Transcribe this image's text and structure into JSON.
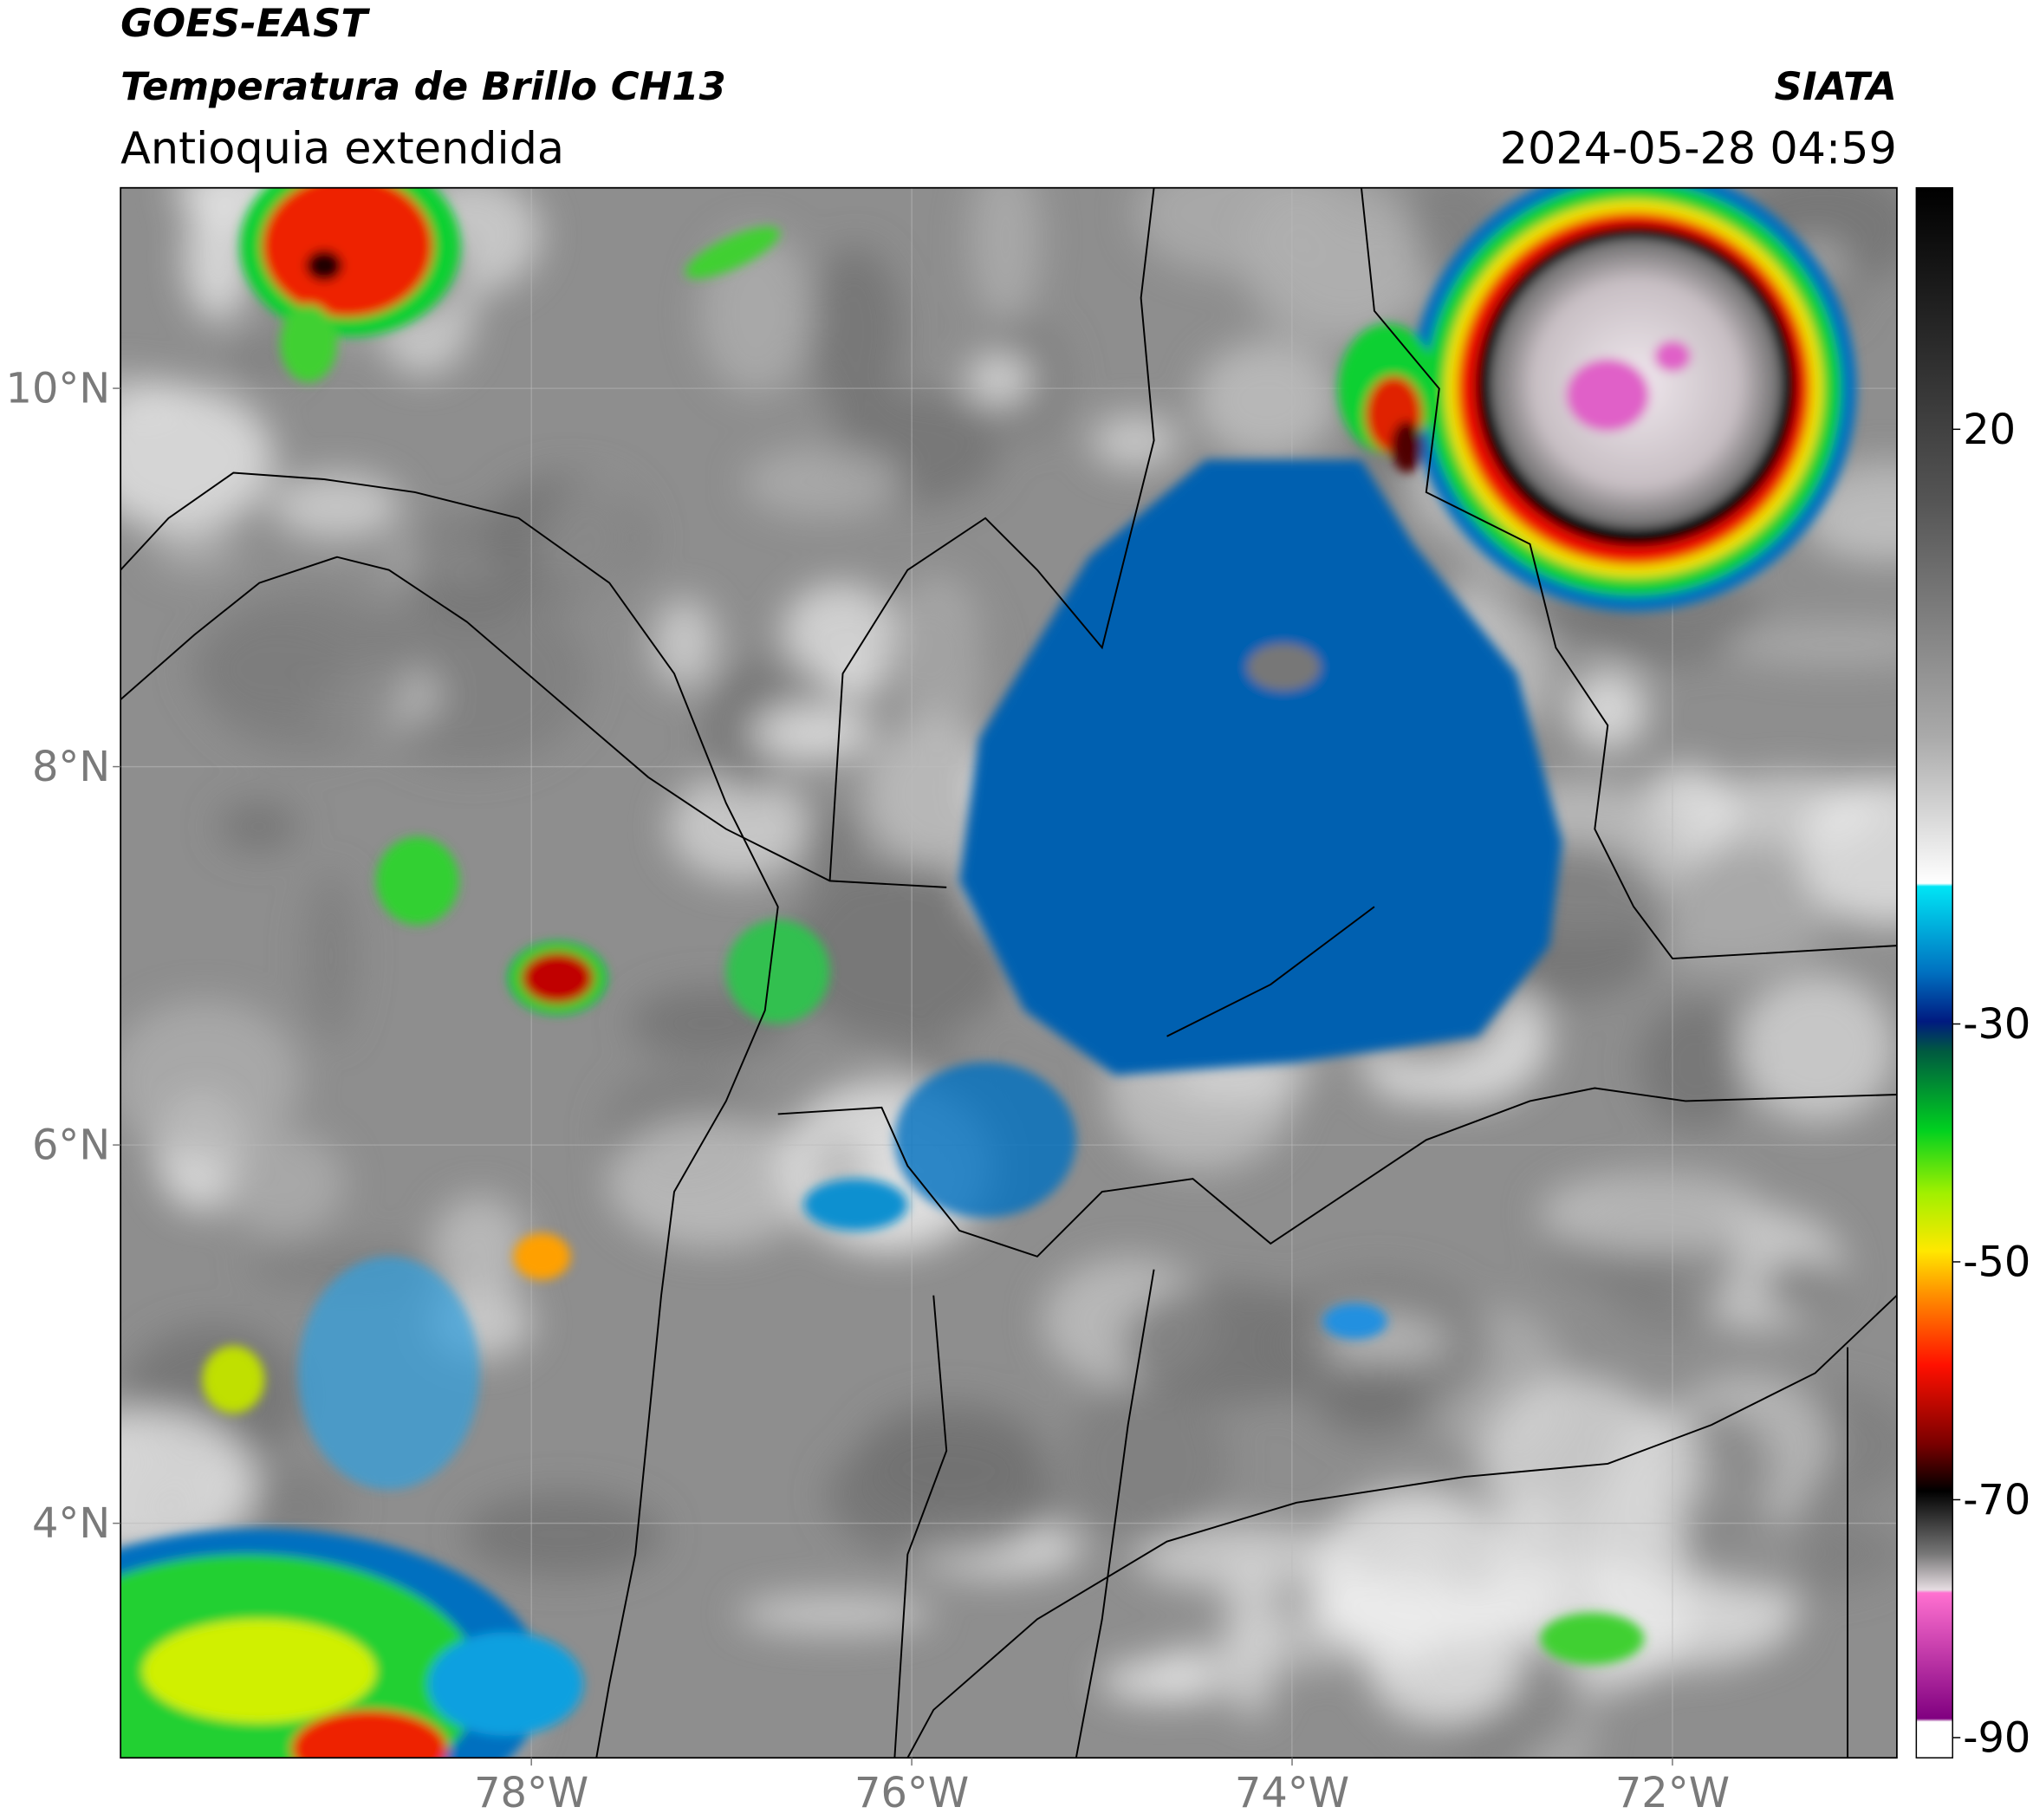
{
  "header": {
    "title": "GOES-EAST",
    "subtitle": "Temperatura de Brillo CH13",
    "region": "Antioquia extendida",
    "agency": "SIATA",
    "datetime": "2024-05-28 04:59"
  },
  "map": {
    "xlim": [
      -80.16,
      -70.82
    ],
    "ylim": [
      2.76,
      11.06
    ],
    "xticks": [
      {
        "value": -78,
        "label": "78°W"
      },
      {
        "value": -76,
        "label": "76°W"
      },
      {
        "value": -74,
        "label": "74°W"
      },
      {
        "value": -72,
        "label": "72°W"
      }
    ],
    "yticks": [
      {
        "value": 4,
        "label": "4°N"
      },
      {
        "value": 6,
        "label": "6°N"
      },
      {
        "value": 8,
        "label": "8°N"
      },
      {
        "value": 10,
        "label": "10°N"
      }
    ],
    "grid": true
  },
  "colorbar": {
    "lim": [
      -91.7,
      40.3
    ],
    "ticks": [
      -90,
      -70,
      -50,
      -30,
      20
    ]
  }
}
